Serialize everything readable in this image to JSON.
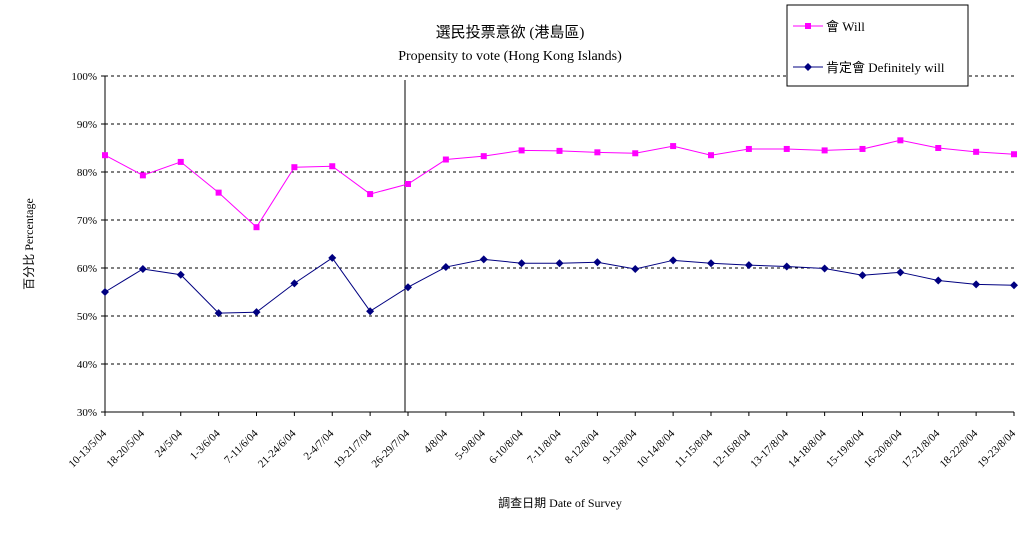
{
  "chart_data": {
    "type": "line",
    "title": "選民投票意欲 (港島區)",
    "subtitle": "Propensity to vote (Hong Kong Islands)",
    "xlabel": "調查日期 Date of Survey",
    "ylabel": "百分比 Percentage",
    "ylim": [
      30,
      100
    ],
    "yticks": [
      "30%",
      "40%",
      "50%",
      "60%",
      "70%",
      "80%",
      "90%",
      "100%"
    ],
    "grid": true,
    "legend_position": "top-right",
    "categories": [
      "10-13/5/04",
      "18-20/5/04",
      "24/5/04",
      "1-3/6/04",
      "7-11/6/04",
      "21-24/6/04",
      "2-4/7/04",
      "19-21/7/04",
      "26-29/7/04",
      "4/8/04",
      "5-9/8/04",
      "6-10/8/04",
      "7-11/8/04",
      "8-12/8/04",
      "9-13/8/04",
      "10-14/8/04",
      "11-15/8/04",
      "12-16/8/04",
      "13-17/8/04",
      "14-18/8/04",
      "15-19/8/04",
      "16-20/8/04",
      "17-21/8/04",
      "18-22/8/04",
      "19-23/8/04"
    ],
    "series": [
      {
        "name": "會 Will",
        "color": "#ff00ff",
        "marker": "square",
        "values": [
          83.5,
          79.3,
          82.1,
          75.7,
          68.5,
          81.0,
          81.2,
          75.4,
          77.5,
          82.6,
          83.3,
          84.5,
          84.4,
          84.1,
          83.9,
          85.4,
          83.5,
          84.8,
          84.8,
          84.5,
          84.8,
          86.6,
          85.0,
          84.2,
          83.7
        ]
      },
      {
        "name": "肯定會 Definitely will",
        "color": "#000080",
        "marker": "diamond",
        "values": [
          55.0,
          59.8,
          58.6,
          50.6,
          50.8,
          56.8,
          62.1,
          51.0,
          56.0,
          60.2,
          61.8,
          61.0,
          61.0,
          61.2,
          59.8,
          61.6,
          61.0,
          60.6,
          60.3,
          59.9,
          58.5,
          59.1,
          57.4,
          56.6,
          56.4
        ]
      }
    ],
    "divider_after_category": "26-29/7/04"
  }
}
